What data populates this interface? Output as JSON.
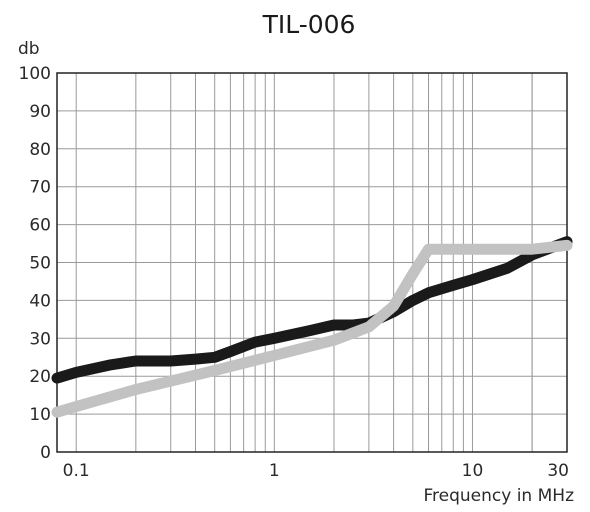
{
  "chart_data": {
    "type": "line",
    "title": "TIL-006",
    "xlabel": "Frequency in MHz",
    "ylabel": "db",
    "x_scale": "log",
    "xlim": [
      0.08,
      30
    ],
    "ylim": [
      0,
      100
    ],
    "grid": true,
    "x_tick_labels": [
      {
        "value": 0.1,
        "label": "0.1"
      },
      {
        "value": 1,
        "label": "1"
      },
      {
        "value": 10,
        "label": "10"
      },
      {
        "value": 30,
        "label": "30"
      }
    ],
    "y_tick_labels": [
      {
        "value": 0,
        "label": "0"
      },
      {
        "value": 10,
        "label": "10"
      },
      {
        "value": 20,
        "label": "20"
      },
      {
        "value": 30,
        "label": "30"
      },
      {
        "value": 40,
        "label": "40"
      },
      {
        "value": 50,
        "label": "50"
      },
      {
        "value": 60,
        "label": "60"
      },
      {
        "value": 70,
        "label": "70"
      },
      {
        "value": 80,
        "label": "80"
      },
      {
        "value": 90,
        "label": "90"
      },
      {
        "value": 100,
        "label": "100"
      }
    ],
    "series": [
      {
        "color": "#1a1a1a",
        "x": [
          0.08,
          0.1,
          0.15,
          0.2,
          0.3,
          0.4,
          0.5,
          0.6,
          0.8,
          1,
          1.5,
          2,
          2.5,
          3,
          4,
          5,
          6,
          8,
          10,
          15,
          20,
          30
        ],
        "values": [
          19.5,
          21,
          23,
          24,
          24,
          24.5,
          25,
          26.5,
          29,
          30,
          32,
          33.5,
          33.5,
          34,
          37,
          40,
          42,
          44,
          45.5,
          48.5,
          52,
          55.5
        ]
      },
      {
        "color": "#c2c2c2",
        "x": [
          0.08,
          0.1,
          0.2,
          0.5,
          1,
          2,
          3,
          4,
          5,
          6,
          8,
          10,
          15,
          20,
          30
        ],
        "values": [
          10.5,
          12,
          16.5,
          21.5,
          25.5,
          29.5,
          33,
          38.5,
          47,
          53.5,
          53.5,
          53.5,
          53.5,
          53.5,
          54.5
        ]
      }
    ]
  }
}
